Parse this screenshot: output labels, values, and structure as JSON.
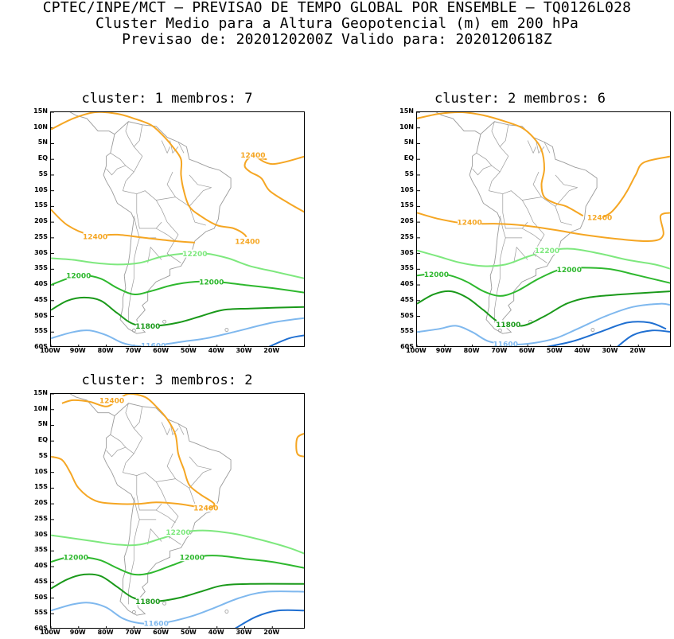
{
  "header": {
    "line1": "CPTEC/INPE/MCT – PREVISAO DE TEMPO GLOBAL POR ENSEMBLE – TQ0126L028",
    "line2": "Cluster Medio para a Altura Geopotencial (m) em 200 hPa",
    "line3": "Previsao de: 2020120200Z   Valido para: 2020120618Z"
  },
  "panels": [
    {
      "title": "cluster: 1  membros: 7"
    },
    {
      "title": "cluster: 2  membros: 6"
    },
    {
      "title": "cluster: 3  membros: 2"
    }
  ],
  "lat_labels": [
    "15N",
    "10N",
    "5N",
    "EQ",
    "5S",
    "10S",
    "15S",
    "20S",
    "25S",
    "30S",
    "35S",
    "40S",
    "45S",
    "50S",
    "55S",
    "60S"
  ],
  "lon_labels": [
    "100W",
    "90W",
    "80W",
    "70W",
    "60W",
    "50W",
    "40W",
    "30W",
    "20W"
  ],
  "contour_labels": {
    "c12400": "12400",
    "c12200": "12200",
    "c12000": "12000",
    "c11800": "11800",
    "c11600": "11600"
  },
  "colors": {
    "c12400": "#f5a623",
    "c12200": "#7ee87e",
    "c12000": "#2eb82e",
    "c11800": "#1a991a",
    "c11600": "#7fb8ee",
    "c11400": "#1f6fd1",
    "coast": "#9a9a9a"
  }
}
